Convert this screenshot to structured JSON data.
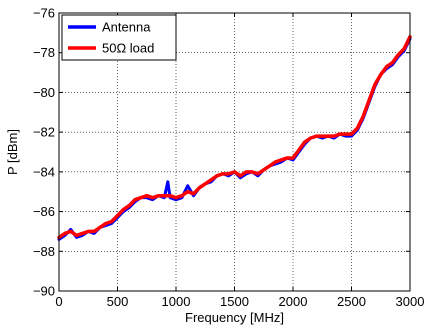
{
  "chart_data": {
    "type": "line",
    "title": "",
    "xlabel": "Frequency [MHz]",
    "ylabel": "P [dBm]",
    "xlim": [
      0,
      3000
    ],
    "ylim": [
      -90,
      -76
    ],
    "xticks": [
      0,
      500,
      1000,
      1500,
      2000,
      2500,
      3000
    ],
    "yticks": [
      -90,
      -88,
      -86,
      -84,
      -82,
      -80,
      -78,
      -76
    ],
    "xtick_labels": [
      "0",
      "500",
      "1000",
      "1500",
      "2000",
      "2500",
      "3000"
    ],
    "ytick_labels": [
      "−90",
      "−88",
      "−86",
      "−84",
      "−82",
      "−80",
      "−78",
      "−76"
    ],
    "grid": true,
    "legend_position": "top-left",
    "series": [
      {
        "name": "Antenna",
        "color": "#0000ff",
        "x": [
          0,
          50,
          100,
          150,
          200,
          250,
          300,
          350,
          400,
          450,
          500,
          550,
          600,
          650,
          700,
          750,
          800,
          850,
          900,
          930,
          950,
          1000,
          1050,
          1100,
          1150,
          1200,
          1250,
          1300,
          1350,
          1400,
          1450,
          1500,
          1550,
          1600,
          1650,
          1700,
          1750,
          1800,
          1850,
          1900,
          1950,
          2000,
          2050,
          2100,
          2150,
          2200,
          2250,
          2300,
          2350,
          2400,
          2450,
          2500,
          2550,
          2600,
          2650,
          2700,
          2750,
          2800,
          2850,
          2900,
          2950,
          3000
        ],
        "y": [
          -87.4,
          -87.2,
          -86.9,
          -87.3,
          -87.2,
          -87.0,
          -87.1,
          -86.8,
          -86.7,
          -86.6,
          -86.3,
          -86.0,
          -85.8,
          -85.5,
          -85.3,
          -85.3,
          -85.4,
          -85.2,
          -85.3,
          -84.5,
          -85.3,
          -85.4,
          -85.3,
          -84.7,
          -85.2,
          -84.8,
          -84.6,
          -84.5,
          -84.2,
          -84.1,
          -84.2,
          -84.0,
          -84.3,
          -84.1,
          -84.0,
          -84.2,
          -83.9,
          -83.7,
          -83.6,
          -83.5,
          -83.3,
          -83.4,
          -83.0,
          -82.6,
          -82.3,
          -82.2,
          -82.3,
          -82.2,
          -82.3,
          -82.1,
          -82.2,
          -82.2,
          -81.9,
          -81.3,
          -80.5,
          -79.7,
          -79.1,
          -78.8,
          -78.6,
          -78.2,
          -77.9,
          -77.3
        ]
      },
      {
        "name": "50Ω load",
        "color": "#ff0000",
        "x": [
          0,
          50,
          100,
          150,
          200,
          250,
          300,
          350,
          400,
          450,
          500,
          550,
          600,
          650,
          700,
          750,
          800,
          850,
          900,
          930,
          950,
          1000,
          1050,
          1100,
          1150,
          1200,
          1250,
          1300,
          1350,
          1400,
          1450,
          1500,
          1550,
          1600,
          1650,
          1700,
          1750,
          1800,
          1850,
          1900,
          1950,
          2000,
          2050,
          2100,
          2150,
          2200,
          2250,
          2300,
          2350,
          2400,
          2450,
          2500,
          2550,
          2600,
          2650,
          2700,
          2750,
          2800,
          2850,
          2900,
          2950,
          3000
        ],
        "y": [
          -87.3,
          -87.1,
          -87.0,
          -87.2,
          -87.1,
          -87.0,
          -87.0,
          -86.8,
          -86.6,
          -86.5,
          -86.2,
          -85.9,
          -85.7,
          -85.4,
          -85.3,
          -85.2,
          -85.3,
          -85.2,
          -85.2,
          -85.2,
          -85.2,
          -85.3,
          -85.2,
          -85.0,
          -85.1,
          -84.8,
          -84.6,
          -84.4,
          -84.2,
          -84.1,
          -84.1,
          -84.0,
          -84.2,
          -84.0,
          -84.0,
          -84.1,
          -83.9,
          -83.7,
          -83.5,
          -83.4,
          -83.3,
          -83.3,
          -82.9,
          -82.5,
          -82.3,
          -82.2,
          -82.2,
          -82.2,
          -82.2,
          -82.1,
          -82.1,
          -82.1,
          -81.8,
          -81.2,
          -80.4,
          -79.6,
          -79.1,
          -78.7,
          -78.5,
          -78.1,
          -77.8,
          -77.2
        ]
      }
    ]
  }
}
